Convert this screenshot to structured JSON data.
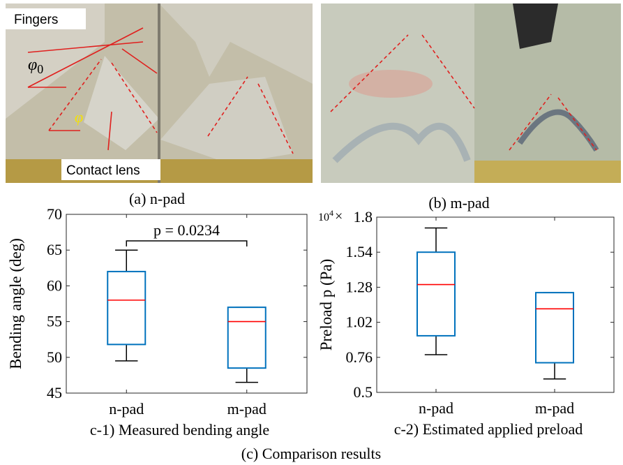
{
  "photos": {
    "n_pad": {
      "caption": "(a) n-pad",
      "fingers": "Fingers",
      "contact_lens": "Contact lens",
      "phi0": {
        "symbol": "φ",
        "subscript": "0"
      },
      "phi": "φ"
    },
    "m_pad": {
      "caption": "(b) m-pad"
    }
  },
  "figure_caption": "(c) Comparison results",
  "chart_data": [
    {
      "type": "box",
      "caption": "c-1) Measured bending angle",
      "ylabel": "Bending angle (deg)",
      "categories": [
        "n-pad",
        "m-pad"
      ],
      "low": [
        49.5,
        46.5
      ],
      "q1": [
        51.8,
        48.5
      ],
      "median": [
        58,
        55
      ],
      "q3": [
        62,
        57
      ],
      "high": [
        65,
        57
      ],
      "ylim": [
        45,
        70
      ],
      "yticks": [
        45,
        50,
        55,
        60,
        65,
        70
      ],
      "box_color": "#0072bd",
      "median_color": "#ff0000",
      "whisker_color": "#000000",
      "annotation": "p = 0.0234"
    },
    {
      "type": "box",
      "caption": "c-2) Estimated applied preload",
      "ylabel": "Preload p (Pa)",
      "multiplier": {
        "base": "10",
        "exponent": "4",
        "times": "×"
      },
      "categories": [
        "n-pad",
        "m-pad"
      ],
      "low": [
        0.78,
        0.6
      ],
      "q1": [
        0.92,
        0.72
      ],
      "median": [
        1.3,
        1.12
      ],
      "q3": [
        1.54,
        1.24
      ],
      "high": [
        1.72,
        1.24
      ],
      "ylim": [
        0.5,
        1.8
      ],
      "yticks": [
        0.5,
        0.76,
        1.02,
        1.28,
        1.54,
        1.8
      ],
      "box_color": "#0072bd",
      "median_color": "#ff0000",
      "whisker_color": "#000000"
    }
  ]
}
